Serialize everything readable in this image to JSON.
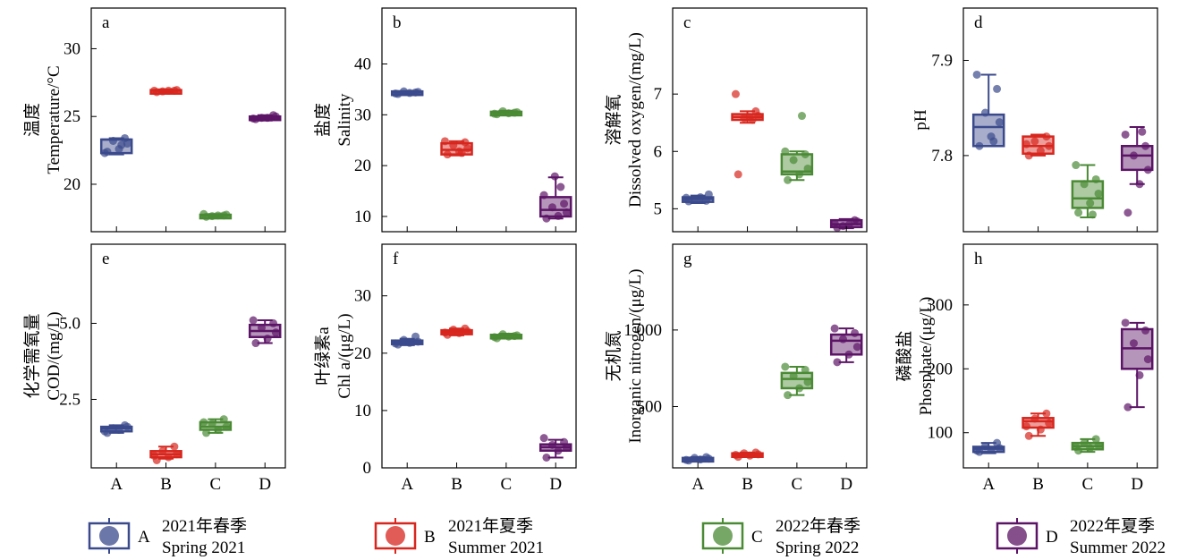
{
  "groups": [
    {
      "key": "A",
      "name_cn": "2021年春季",
      "name_en": "Spring 2021",
      "color": "#3b4a8c"
    },
    {
      "key": "B",
      "name_cn": "2021年夏季",
      "name_en": "Summer 2021",
      "color": "#d7261e"
    },
    {
      "key": "C",
      "name_cn": "2022年春季",
      "name_en": "Spring 2022",
      "color": "#4a8a34"
    },
    {
      "key": "D",
      "name_cn": "2022年夏季",
      "name_en": "Summer 2022",
      "color": "#5c1466"
    }
  ],
  "chart_data": [
    {
      "type": "box",
      "letter": "a",
      "ylabel_cn": "温度",
      "ylabel_en": "Temperature/°C",
      "ylim": [
        16.5,
        33.0
      ],
      "yticks": [
        20,
        25,
        30
      ],
      "ytick_labels": [
        "20",
        "25",
        "30"
      ],
      "categories": [
        "A",
        "B",
        "C",
        "D"
      ],
      "boxes": [
        {
          "q1": 22.3,
          "median": 23.3,
          "q3": 23.3,
          "whislo": 22.2,
          "whishi": 23.4,
          "points": [
            22.4,
            22.6,
            23.0,
            23.2,
            23.4,
            22.3,
            22.9
          ]
        },
        {
          "q1": 26.85,
          "median": 26.9,
          "q3": 26.95,
          "whislo": 26.8,
          "whishi": 27.0,
          "points": [
            26.8,
            26.9,
            26.95,
            26.85,
            26.9,
            26.9
          ]
        },
        {
          "q1": 17.65,
          "median": 17.7,
          "q3": 17.75,
          "whislo": 17.6,
          "whishi": 17.8,
          "points": [
            17.6,
            17.7,
            17.75,
            17.65,
            17.7,
            17.8
          ]
        },
        {
          "q1": 24.8,
          "median": 24.9,
          "q3": 25.0,
          "whislo": 24.7,
          "whishi": 25.1,
          "points": [
            24.8,
            24.9,
            25.0,
            24.9,
            25.1,
            24.85
          ]
        }
      ]
    },
    {
      "type": "box",
      "letter": "b",
      "ylabel_cn": "盐度",
      "ylabel_en": "Salinity",
      "ylim": [
        7.0,
        51.0
      ],
      "yticks": [
        10,
        20,
        30,
        40
      ],
      "ytick_labels": [
        "10",
        "20",
        "30",
        "40"
      ],
      "categories": [
        "A",
        "B",
        "C",
        "D"
      ],
      "boxes": [
        {
          "q1": 34.2,
          "median": 34.4,
          "q3": 34.6,
          "whislo": 34.1,
          "whishi": 34.7,
          "points": [
            34.1,
            34.3,
            34.5,
            34.6,
            34.4,
            34.2
          ]
        },
        {
          "q1": 22.2,
          "median": 23.1,
          "q3": 24.4,
          "whislo": 22.0,
          "whishi": 24.8,
          "points": [
            22.2,
            22.8,
            23.4,
            24.0,
            24.6,
            24.8,
            22.5
          ]
        },
        {
          "q1": 30.2,
          "median": 30.4,
          "q3": 30.6,
          "whislo": 30.0,
          "whishi": 30.8,
          "points": [
            30.1,
            30.3,
            30.5,
            30.7,
            30.4,
            30.2
          ]
        },
        {
          "q1": 10.0,
          "median": 11.3,
          "q3": 13.8,
          "whislo": 9.6,
          "whishi": 17.7,
          "points": [
            9.6,
            10.1,
            10.8,
            11.8,
            12.5,
            14.2,
            15.8,
            17.9
          ]
        }
      ]
    },
    {
      "type": "box",
      "letter": "c",
      "ylabel_cn": "溶解氧",
      "ylabel_en": "Dissolved oxygen/(mg/L)",
      "ylim": [
        4.6,
        8.5
      ],
      "yticks": [
        5,
        6,
        7
      ],
      "ytick_labels": [
        "5",
        "6",
        "7"
      ],
      "categories": [
        "A",
        "B",
        "C",
        "D"
      ],
      "boxes": [
        {
          "q1": 5.12,
          "median": 5.17,
          "q3": 5.2,
          "whislo": 5.1,
          "whishi": 5.23,
          "points": [
            5.13,
            5.2,
            5.25,
            5.17,
            5.14,
            5.19
          ]
        },
        {
          "q1": 6.55,
          "median": 6.6,
          "q3": 6.65,
          "whislo": 6.5,
          "whishi": 6.7,
          "points": [
            5.6,
            6.6,
            6.62,
            6.58,
            6.7,
            7.0,
            6.55
          ]
        },
        {
          "q1": 5.6,
          "median": 5.65,
          "q3": 5.95,
          "whislo": 5.5,
          "whishi": 6.0,
          "points": [
            5.5,
            5.6,
            5.7,
            5.85,
            5.95,
            6.0,
            6.62
          ]
        },
        {
          "q1": 4.68,
          "median": 4.73,
          "q3": 4.8,
          "whislo": 4.66,
          "whishi": 4.82,
          "points": [
            4.67,
            4.72,
            4.78,
            4.7,
            4.8,
            4.75
          ]
        }
      ]
    },
    {
      "type": "box",
      "letter": "d",
      "ylabel_cn": "",
      "ylabel_en": "pH",
      "ylim": [
        7.72,
        7.955
      ],
      "yticks": [
        7.8,
        7.9
      ],
      "ytick_labels": [
        "7.8",
        "7.9"
      ],
      "categories": [
        "A",
        "B",
        "C",
        "D"
      ],
      "boxes": [
        {
          "q1": 7.81,
          "median": 7.83,
          "q3": 7.843,
          "whislo": 7.81,
          "whishi": 7.885,
          "points": [
            7.81,
            7.82,
            7.835,
            7.845,
            7.87,
            7.885,
            7.815
          ]
        },
        {
          "q1": 7.802,
          "median": 7.81,
          "q3": 7.82,
          "whislo": 7.8,
          "whishi": 7.822,
          "points": [
            7.8,
            7.805,
            7.81,
            7.815,
            7.82,
            7.812
          ]
        },
        {
          "q1": 7.745,
          "median": 7.755,
          "q3": 7.773,
          "whislo": 7.735,
          "whishi": 7.79,
          "points": [
            7.74,
            7.75,
            7.76,
            7.77,
            7.775,
            7.79,
            7.738
          ]
        },
        {
          "q1": 7.785,
          "median": 7.8,
          "q3": 7.81,
          "whislo": 7.77,
          "whishi": 7.83,
          "points": [
            7.74,
            7.77,
            7.785,
            7.8,
            7.81,
            7.822,
            7.825
          ]
        }
      ]
    },
    {
      "type": "box",
      "letter": "e",
      "ylabel_cn": "化学需氧量",
      "ylabel_en": "COD/(mg/L)",
      "ylim": [
        0.25,
        7.6
      ],
      "yticks": [
        2.5,
        5.0
      ],
      "ytick_labels": [
        "2.5",
        "5.0"
      ],
      "categories": [
        "A",
        "B",
        "C",
        "D"
      ],
      "boxes": [
        {
          "q1": 1.45,
          "median": 1.55,
          "q3": 1.6,
          "whislo": 1.4,
          "whishi": 1.65,
          "points": [
            1.4,
            1.5,
            1.6,
            1.55,
            1.65,
            1.45
          ]
        },
        {
          "q1": 0.6,
          "median": 0.7,
          "q3": 0.8,
          "whislo": 0.55,
          "whishi": 0.95,
          "points": [
            0.5,
            0.6,
            0.7,
            0.8,
            0.95,
            0.65
          ]
        },
        {
          "q1": 1.5,
          "median": 1.6,
          "q3": 1.75,
          "whislo": 1.4,
          "whishi": 1.85,
          "points": [
            1.4,
            1.5,
            1.6,
            1.7,
            1.85,
            1.75
          ]
        },
        {
          "q1": 4.55,
          "median": 4.75,
          "q3": 4.95,
          "whislo": 4.35,
          "whishi": 5.1,
          "points": [
            4.35,
            4.5,
            4.7,
            4.85,
            5.0,
            5.1
          ]
        }
      ]
    },
    {
      "type": "box",
      "letter": "f",
      "ylabel_cn": "叶绿素a",
      "ylabel_en": "Chl a/(μg/L)",
      "ylim": [
        0,
        39
      ],
      "yticks": [
        0,
        10,
        20,
        30
      ],
      "ytick_labels": [
        "0",
        "10",
        "20",
        "30"
      ],
      "categories": [
        "A",
        "B",
        "C",
        "D"
      ],
      "boxes": [
        {
          "q1": 21.6,
          "median": 21.9,
          "q3": 22.2,
          "whislo": 21.4,
          "whishi": 22.5,
          "points": [
            21.5,
            21.8,
            22.0,
            22.3,
            22.9,
            21.7
          ]
        },
        {
          "q1": 23.3,
          "median": 23.7,
          "q3": 24.0,
          "whislo": 23.1,
          "whishi": 24.3,
          "points": [
            23.2,
            23.5,
            23.8,
            24.1,
            24.3,
            23.6
          ]
        },
        {
          "q1": 22.7,
          "median": 23.0,
          "q3": 23.2,
          "whislo": 22.6,
          "whishi": 23.4,
          "points": [
            22.6,
            22.9,
            23.1,
            23.3,
            23.0,
            22.8
          ]
        },
        {
          "q1": 3.0,
          "median": 3.6,
          "q3": 4.1,
          "whislo": 1.8,
          "whishi": 4.9,
          "points": [
            1.8,
            3.0,
            3.5,
            4.0,
            4.5,
            5.2
          ]
        }
      ]
    },
    {
      "type": "box",
      "letter": "g",
      "ylabel_cn": "无机氮",
      "ylabel_en": "Inorganic nitrogen/(μg/L)",
      "ylim": [
        100,
        1560
      ],
      "yticks": [
        500,
        1000
      ],
      "ytick_labels": [
        "500",
        "1 000"
      ],
      "categories": [
        "A",
        "B",
        "C",
        "D"
      ],
      "boxes": [
        {
          "q1": 150,
          "median": 158,
          "q3": 165,
          "whislo": 145,
          "whishi": 170,
          "points": [
            148,
            155,
            160,
            165,
            170,
            152
          ]
        },
        {
          "q1": 175,
          "median": 185,
          "q3": 195,
          "whislo": 170,
          "whishi": 200,
          "points": [
            172,
            180,
            188,
            195,
            200,
            185
          ]
        },
        {
          "q1": 620,
          "median": 680,
          "q3": 720,
          "whislo": 575,
          "whishi": 760,
          "points": [
            575,
            620,
            660,
            700,
            740,
            760
          ]
        },
        {
          "q1": 840,
          "median": 930,
          "q3": 970,
          "whislo": 790,
          "whishi": 1010,
          "points": [
            790,
            840,
            890,
            940,
            980,
            1010
          ]
        }
      ]
    },
    {
      "type": "box",
      "letter": "h",
      "ylabel_cn": "磷酸盐",
      "ylabel_en": "Phosphate/(μg/L)",
      "ylim": [
        45,
        395
      ],
      "yticks": [
        100,
        200,
        300
      ],
      "ytick_labels": [
        "100",
        "200",
        "300"
      ],
      "categories": [
        "A",
        "B",
        "C",
        "D"
      ],
      "boxes": [
        {
          "q1": 70,
          "median": 75,
          "q3": 78,
          "whislo": 68,
          "whishi": 84,
          "points": [
            70,
            73,
            76,
            79,
            84,
            72
          ]
        },
        {
          "q1": 108,
          "median": 118,
          "q3": 123,
          "whislo": 95,
          "whishi": 130,
          "points": [
            95,
            105,
            115,
            122,
            130,
            110
          ]
        },
        {
          "q1": 74,
          "median": 79,
          "q3": 84,
          "whislo": 70,
          "whishi": 90,
          "points": [
            72,
            76,
            80,
            84,
            90,
            78
          ]
        },
        {
          "q1": 200,
          "median": 232,
          "q3": 262,
          "whislo": 140,
          "whishi": 272,
          "points": [
            140,
            190,
            215,
            240,
            260,
            272
          ]
        }
      ]
    }
  ]
}
